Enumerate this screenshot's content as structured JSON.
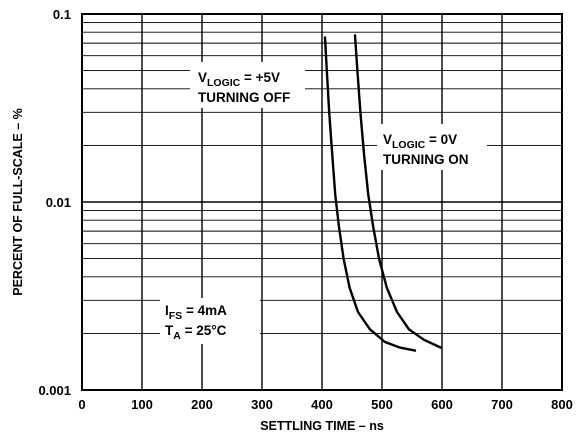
{
  "chart_data": {
    "type": "line",
    "xlabel": "SETTLING TIME – ns",
    "ylabel": "PERCENT OF FULL-SCALE – %",
    "xlim": [
      0,
      800
    ],
    "ylim": [
      0.001,
      0.1
    ],
    "y_scale": "log",
    "grid": true,
    "x_ticks": [
      0,
      100,
      200,
      300,
      400,
      500,
      600,
      700,
      800
    ],
    "x_tick_labels": [
      "0",
      "100",
      "200",
      "300",
      "400",
      "500",
      "600",
      "700",
      "800"
    ],
    "y_ticks": [
      0.001,
      0.01,
      0.1
    ],
    "y_tick_labels": [
      "0.001",
      "0.01",
      "0.1"
    ],
    "series": [
      {
        "x": [
          405,
          408,
          412,
          417,
          422,
          428,
          436,
          446,
          460,
          480,
          505,
          530,
          555
        ],
        "y": [
          0.075,
          0.05,
          0.03,
          0.018,
          0.011,
          0.0075,
          0.005,
          0.0035,
          0.0026,
          0.0021,
          0.0018,
          0.00168,
          0.00162
        ]
      },
      {
        "x": [
          455,
          459,
          464,
          470,
          477,
          485,
          495,
          508,
          525,
          545,
          570,
          598
        ],
        "y": [
          0.077,
          0.05,
          0.03,
          0.018,
          0.011,
          0.0075,
          0.005,
          0.0035,
          0.0026,
          0.0021,
          0.00185,
          0.00168
        ]
      }
    ],
    "annotations": [
      {
        "main": "V",
        "sub": "LOGIC",
        "rest": " = +5V",
        "line2": "TURNING OFF"
      },
      {
        "main": "V",
        "sub": "LOGIC",
        "rest": " = 0V",
        "line2": "TURNING ON"
      },
      {
        "main": "I",
        "sub": "FS",
        "rest": " = 4mA",
        "line2_main": "T",
        "line2_sub": "A",
        "line2_rest": " = 25°C"
      }
    ]
  }
}
